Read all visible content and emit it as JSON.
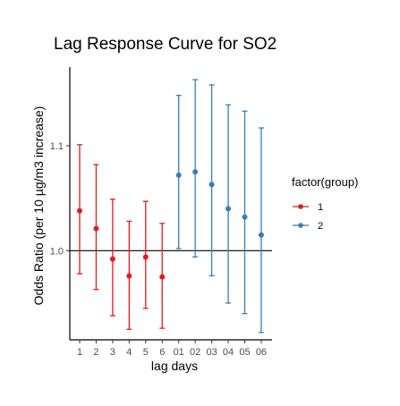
{
  "chart_data": {
    "type": "errorbar",
    "title": "Lag Response Curve for SO2",
    "xlabel": "lag days",
    "ylabel": "Odds Ratio (per 10 µg/m3 increase)",
    "categories": [
      "1",
      "2",
      "3",
      "4",
      "5",
      "6",
      "01",
      "02",
      "03",
      "04",
      "05",
      "06"
    ],
    "y_ticks": [
      1.0,
      1.1
    ],
    "y_tick_labels": [
      "1.0",
      "1.1"
    ],
    "ylim": [
      0.915,
      1.175
    ],
    "reference_line": 1.0,
    "legend": {
      "title": "factor(group)",
      "position": "right",
      "entries": [
        "1",
        "2"
      ]
    },
    "series": [
      {
        "name": "1",
        "color": "#e41a1c",
        "x": [
          "1",
          "2",
          "3",
          "4",
          "5",
          "6"
        ],
        "values": [
          1.038,
          1.021,
          0.992,
          0.976,
          0.994,
          0.975
        ],
        "lower": [
          0.978,
          0.963,
          0.938,
          0.925,
          0.945,
          0.926
        ],
        "upper": [
          1.101,
          1.082,
          1.049,
          1.028,
          1.047,
          1.026
        ]
      },
      {
        "name": "2",
        "color": "#377eb8",
        "x": [
          "01",
          "02",
          "03",
          "04",
          "05",
          "06"
        ],
        "values": [
          1.072,
          1.075,
          1.063,
          1.04,
          1.032,
          1.015
        ],
        "lower": [
          1.002,
          0.994,
          0.976,
          0.95,
          0.94,
          0.922
        ],
        "upper": [
          1.148,
          1.163,
          1.158,
          1.139,
          1.133,
          1.117
        ]
      }
    ]
  }
}
